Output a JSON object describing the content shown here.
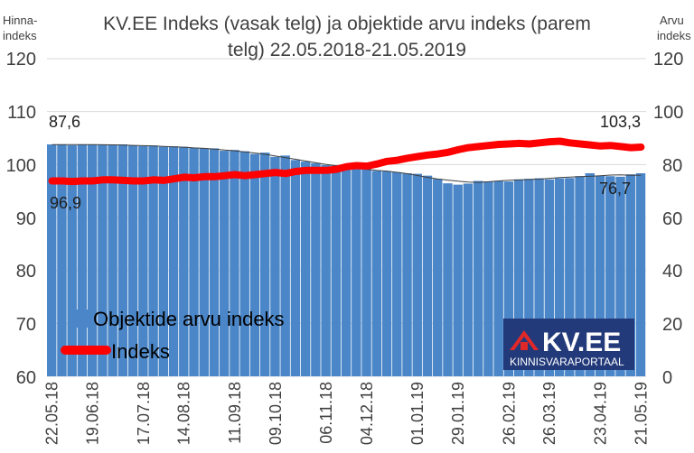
{
  "chart_data": {
    "type": "bar",
    "title_lines": [
      "KV.EE Indeks (vasak telg) ja objektide arvu indeks (parem",
      "telg) 22.05.2018-21.05.2019"
    ],
    "ylabel_left": [
      "Hinna-",
      "indeks"
    ],
    "ylabel_right": [
      "Arvu",
      "indeks"
    ],
    "ylim_left": [
      60,
      120
    ],
    "ylim_right": [
      0,
      120
    ],
    "yticks_left": [
      "120",
      "110",
      "100",
      "90",
      "80",
      "70",
      "60"
    ],
    "yticks_right": [
      "120",
      "100",
      "80",
      "60",
      "40",
      "20",
      "0"
    ],
    "x_tick_labels": [
      "22.05.18",
      "19.06.18",
      "17.07.18",
      "14.08.18",
      "11.09.18",
      "09.10.18",
      "06.11.18",
      "04.12.18",
      "01.01.19",
      "29.01.19",
      "26.02.19",
      "26.03.19",
      "23.04.19",
      "21.05.19"
    ],
    "grid": true,
    "series": [
      {
        "name": "Objektide arvu indeks",
        "axis": "right",
        "kind": "bar",
        "color": "#4a86c8",
        "values": [
          87.6,
          87.6,
          87.3,
          87.6,
          87.6,
          87.6,
          87.4,
          87.6,
          87.2,
          87.0,
          87.2,
          86.7,
          86.9,
          86.7,
          86.3,
          86.1,
          86.1,
          85.2,
          85.5,
          85.0,
          84.0,
          84.5,
          82.9,
          83.4,
          81.7,
          81.1,
          80.5,
          79.8,
          79.8,
          78.2,
          79.0,
          78.3,
          77.6,
          77.4,
          77.1,
          76.7,
          76.5,
          75.8,
          74.6,
          72.9,
          72.4,
          72.8,
          73.8,
          73.6,
          73.8,
          73.6,
          74.4,
          74.6,
          74.8,
          74.4,
          74.8,
          74.9,
          75.6,
          76.7,
          75.8,
          75.6,
          75.4,
          76.3,
          76.7
        ],
        "value_labels": {
          "first": "87,6",
          "last": "76,7"
        }
      },
      {
        "name": "Indeks",
        "axis": "left",
        "kind": "line",
        "color": "#ff0000",
        "values": [
          96.9,
          96.9,
          96.8,
          96.9,
          96.9,
          97.1,
          97.1,
          97.0,
          96.9,
          96.9,
          97.1,
          97.0,
          97.3,
          97.6,
          97.5,
          97.7,
          97.7,
          97.9,
          98.1,
          97.9,
          98.1,
          98.3,
          98.5,
          98.3,
          98.7,
          98.9,
          98.9,
          98.9,
          99.1,
          99.6,
          99.8,
          99.7,
          100.1,
          100.6,
          100.8,
          101.2,
          101.5,
          101.8,
          102.0,
          102.3,
          102.8,
          103.2,
          103.4,
          103.6,
          103.8,
          103.9,
          104.0,
          103.9,
          104.1,
          104.3,
          104.4,
          104.1,
          103.9,
          103.7,
          103.5,
          103.6,
          103.4,
          103.2,
          103.3
        ],
        "value_labels": {
          "first": "96,9",
          "last": "103,3"
        }
      }
    ],
    "legend_position": "bottom-left"
  },
  "logo": {
    "brand": "KV.EE",
    "tagline": "KINNISVARAPORTAAL",
    "background": "#223a7a",
    "accent": "#e02828",
    "icon": "house-icon"
  }
}
